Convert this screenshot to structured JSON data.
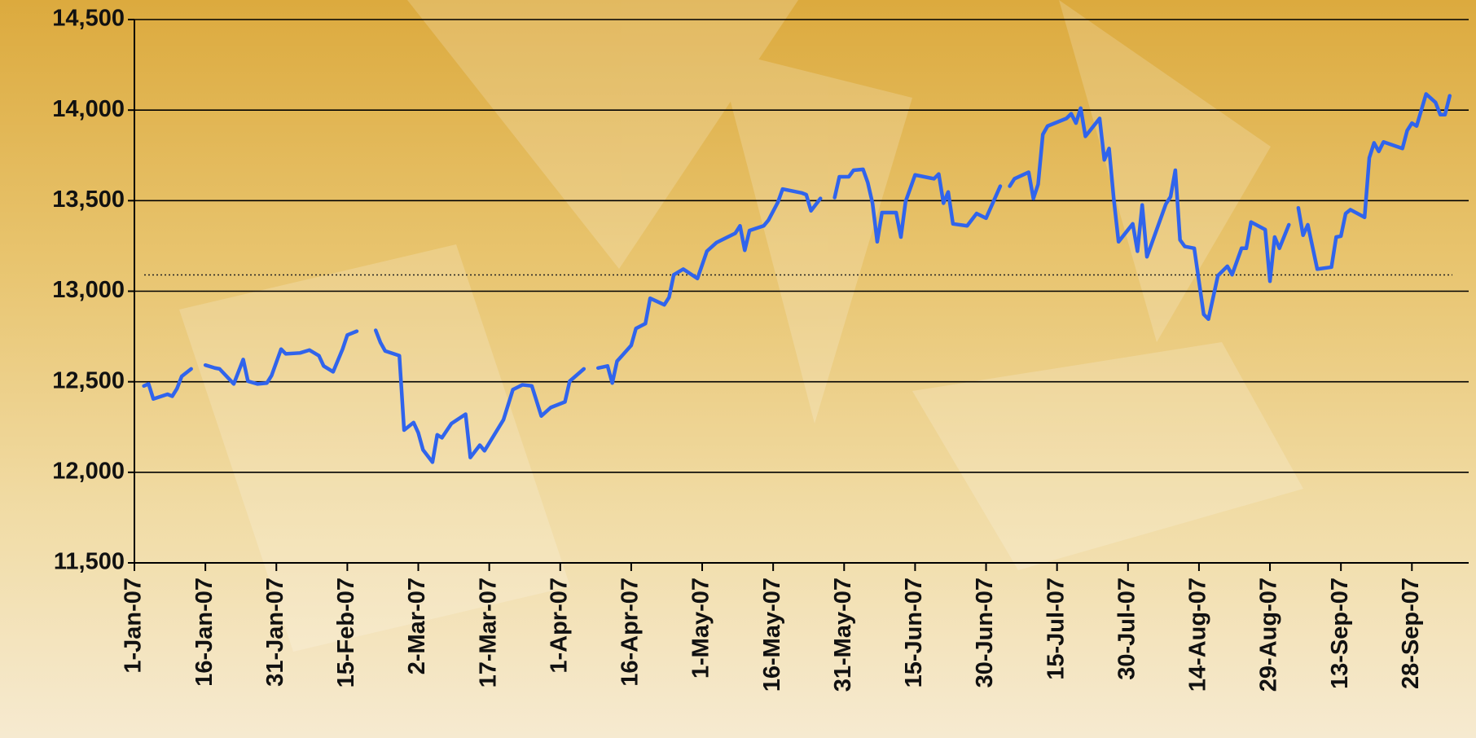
{
  "chart_data": {
    "type": "line",
    "x": [
      "2007-01-03",
      "2007-01-04",
      "2007-01-05",
      "2007-01-08",
      "2007-01-09",
      "2007-01-10",
      "2007-01-11",
      "2007-01-13",
      "2007-01-14",
      "2007-01-16",
      "2007-01-18",
      "2007-01-19",
      "2007-01-22",
      "2007-01-24",
      "2007-01-25",
      "2007-01-27",
      "2007-01-29",
      "2007-01-30",
      "2007-02-01",
      "2007-02-02",
      "2007-02-05",
      "2007-02-07",
      "2007-02-09",
      "2007-02-10",
      "2007-02-12",
      "2007-02-14",
      "2007-02-15",
      "2007-02-17",
      "2007-02-19",
      "2007-02-21",
      "2007-02-22",
      "2007-02-23",
      "2007-02-26",
      "2007-02-27",
      "2007-03-01",
      "2007-03-02",
      "2007-03-03",
      "2007-03-05",
      "2007-03-06",
      "2007-03-07",
      "2007-03-09",
      "2007-03-12",
      "2007-03-13",
      "2007-03-15",
      "2007-03-16",
      "2007-03-20",
      "2007-03-22",
      "2007-03-24",
      "2007-03-26",
      "2007-03-28",
      "2007-03-30",
      "2007-04-02",
      "2007-04-03",
      "2007-04-06",
      "2007-04-07",
      "2007-04-09",
      "2007-04-11",
      "2007-04-12",
      "2007-04-13",
      "2007-04-16",
      "2007-04-17",
      "2007-04-19",
      "2007-04-20",
      "2007-04-23",
      "2007-04-24",
      "2007-04-25",
      "2007-04-27",
      "2007-04-30",
      "2007-05-02",
      "2007-05-04",
      "2007-05-08",
      "2007-05-09",
      "2007-05-10",
      "2007-05-11",
      "2007-05-14",
      "2007-05-15",
      "2007-05-17",
      "2007-05-18",
      "2007-05-22",
      "2007-05-23",
      "2007-05-24",
      "2007-05-26",
      "2007-05-27",
      "2007-05-29",
      "2007-05-30",
      "2007-06-01",
      "2007-06-02",
      "2007-06-04",
      "2007-06-05",
      "2007-06-06",
      "2007-06-07",
      "2007-06-08",
      "2007-06-11",
      "2007-06-12",
      "2007-06-13",
      "2007-06-15",
      "2007-06-19",
      "2007-06-20",
      "2007-06-21",
      "2007-06-22",
      "2007-06-23",
      "2007-06-26",
      "2007-06-28",
      "2007-06-30",
      "2007-07-03",
      "2007-07-04",
      "2007-07-05",
      "2007-07-06",
      "2007-07-09",
      "2007-07-10",
      "2007-07-11",
      "2007-07-12",
      "2007-07-13",
      "2007-07-17",
      "2007-07-18",
      "2007-07-19",
      "2007-07-20",
      "2007-07-21",
      "2007-07-24",
      "2007-07-25",
      "2007-07-26",
      "2007-07-27",
      "2007-07-28",
      "2007-07-31",
      "2007-08-01",
      "2007-08-02",
      "2007-08-03",
      "2007-08-07",
      "2007-08-08",
      "2007-08-09",
      "2007-08-10",
      "2007-08-11",
      "2007-08-13",
      "2007-08-15",
      "2007-08-16",
      "2007-08-18",
      "2007-08-20",
      "2007-08-21",
      "2007-08-23",
      "2007-08-24",
      "2007-08-25",
      "2007-08-28",
      "2007-08-29",
      "2007-08-30",
      "2007-08-31",
      "2007-09-02",
      "2007-09-03",
      "2007-09-04",
      "2007-09-05",
      "2007-09-06",
      "2007-09-08",
      "2007-09-11",
      "2007-09-12",
      "2007-09-13",
      "2007-09-14",
      "2007-09-15",
      "2007-09-18",
      "2007-09-19",
      "2007-09-20",
      "2007-09-21",
      "2007-09-22",
      "2007-09-26",
      "2007-09-27",
      "2007-09-28",
      "2007-09-29",
      "2007-10-01",
      "2007-10-03",
      "2007-10-04",
      "2007-10-05",
      "2007-10-06"
    ],
    "series": [
      {
        "color": "#3064ec",
        "values": [
          12477,
          12488,
          12405,
          12431,
          12420,
          12462,
          12530,
          12571,
          null,
          12592,
          12576,
          12571,
          12488,
          12623,
          12503,
          12488,
          12493,
          12535,
          12680,
          12654,
          12659,
          12675,
          12644,
          12587,
          12555,
          12680,
          12758,
          12779,
          null,
          12784,
          12717,
          12670,
          12644,
          12233,
          12275,
          12218,
          12124,
          12056,
          12207,
          12191,
          12269,
          12321,
          12082,
          12150,
          12119,
          12290,
          12457,
          12483,
          12477,
          12311,
          12358,
          12389,
          12503,
          12571,
          null,
          12576,
          12587,
          12493,
          12613,
          12701,
          12794,
          12821,
          12961,
          12925,
          12966,
          13091,
          13122,
          13070,
          13221,
          13268,
          13320,
          13361,
          13226,
          13335,
          13361,
          13392,
          13491,
          13564,
          13543,
          13533,
          13444,
          13512,
          null,
          13517,
          13632,
          13632,
          13668,
          13673,
          13600,
          13486,
          13273,
          13434,
          13434,
          13299,
          13496,
          13642,
          13621,
          13647,
          13486,
          13548,
          13372,
          13361,
          13429,
          13403,
          13580,
          null,
          13580,
          13621,
          13657,
          13512,
          13590,
          13866,
          13912,
          13954,
          13980,
          13928,
          14011,
          13855,
          13954,
          13725,
          13788,
          13507,
          13273,
          13372,
          13221,
          13476,
          13190,
          13481,
          13522,
          13668,
          13283,
          13247,
          13237,
          12872,
          12846,
          13086,
          13138,
          13091,
          13237,
          13237,
          13382,
          13340,
          13055,
          13299,
          13237,
          13367,
          null,
          13460,
          13309,
          13367,
          13122,
          13133,
          13299,
          13304,
          13429,
          13450,
          13408,
          13736,
          13819,
          13772,
          13824,
          13788,
          13887,
          13928,
          13912,
          14089,
          14042,
          13975,
          13975,
          14079
        ]
      }
    ],
    "reference_line": {
      "value": 13090,
      "color": "#222222"
    },
    "xlim": [
      "2007-01-01",
      "2007-10-10"
    ],
    "xticks": [
      {
        "value": "2007-01-01",
        "label": "1-Jan-07"
      },
      {
        "value": "2007-01-16",
        "label": "16-Jan-07"
      },
      {
        "value": "2007-01-31",
        "label": "31-Jan-07"
      },
      {
        "value": "2007-02-15",
        "label": "15-Feb-07"
      },
      {
        "value": "2007-03-02",
        "label": "2-Mar-07"
      },
      {
        "value": "2007-03-17",
        "label": "17-Mar-07"
      },
      {
        "value": "2007-04-01",
        "label": "1-Apr-07"
      },
      {
        "value": "2007-04-16",
        "label": "16-Apr-07"
      },
      {
        "value": "2007-05-01",
        "label": "1-May-07"
      },
      {
        "value": "2007-05-16",
        "label": "16-May-07"
      },
      {
        "value": "2007-05-31",
        "label": "31-May-07"
      },
      {
        "value": "2007-06-15",
        "label": "15-Jun-07"
      },
      {
        "value": "2007-06-30",
        "label": "30-Jun-07"
      },
      {
        "value": "2007-07-15",
        "label": "15-Jul-07"
      },
      {
        "value": "2007-07-30",
        "label": "30-Jul-07"
      },
      {
        "value": "2007-08-14",
        "label": "14-Aug-07"
      },
      {
        "value": "2007-08-29",
        "label": "29-Aug-07"
      },
      {
        "value": "2007-09-13",
        "label": "13-Sep-07"
      },
      {
        "value": "2007-09-28",
        "label": "28-Sep-07"
      }
    ],
    "ylim": [
      11500,
      14500
    ],
    "yticks": [
      {
        "value": 11500,
        "label": "11,500"
      },
      {
        "value": 12000,
        "label": "12,000"
      },
      {
        "value": 12500,
        "label": "12,500"
      },
      {
        "value": 13000,
        "label": "13,000"
      },
      {
        "value": 13500,
        "label": "13,500"
      },
      {
        "value": 14000,
        "label": "14,000"
      },
      {
        "value": 14500,
        "label": "14,500"
      }
    ],
    "grid": true
  }
}
